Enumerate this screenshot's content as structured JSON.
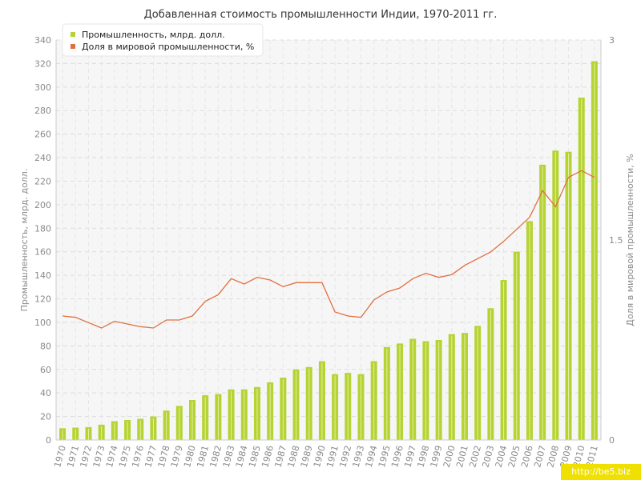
{
  "chart_data": {
    "type": "bar",
    "title": "Добавленная стоимость промышленности Индии, 1970-2011 гг.",
    "ylabel_left": "Промышленность, млрд. долл.",
    "ylabel_right": "Доля в мировой промышленности, %",
    "xlabel": "",
    "ylim_left": [
      0,
      340
    ],
    "ylim_right": [
      0,
      3
    ],
    "yticks_left": [
      "0",
      "20",
      "40",
      "60",
      "80",
      "100",
      "120",
      "140",
      "160",
      "180",
      "200",
      "220",
      "240",
      "260",
      "280",
      "300",
      "320",
      "340"
    ],
    "yticks_right": [
      "0",
      "1.5",
      "3"
    ],
    "grid": true,
    "legend_position": "top-left",
    "categories": [
      "1970",
      "1971",
      "1972",
      "1973",
      "1974",
      "1975",
      "1976",
      "1977",
      "1978",
      "1979",
      "1980",
      "1981",
      "1982",
      "1983",
      "1984",
      "1985",
      "1986",
      "1987",
      "1988",
      "1989",
      "1990",
      "1991",
      "1992",
      "1993",
      "1994",
      "1995",
      "1996",
      "1997",
      "1998",
      "1999",
      "2000",
      "2001",
      "2002",
      "2003",
      "2004",
      "2005",
      "2006",
      "2007",
      "2008",
      "2009",
      "2010",
      "2011"
    ],
    "series": [
      {
        "name": "Промышленность, млрд. долл.",
        "type": "bar",
        "axis": "left",
        "color": "#b5d334",
        "values": [
          10,
          10.5,
          11,
          13,
          16,
          17,
          18,
          20,
          25,
          29,
          34,
          38,
          39,
          43,
          43,
          45,
          49,
          53,
          60,
          62,
          67,
          56,
          57,
          56,
          67,
          79,
          82,
          86,
          84,
          85,
          90,
          91,
          97,
          112,
          136,
          160,
          186,
          234,
          246,
          245,
          291,
          322
        ]
      },
      {
        "name": "Доля в мировой промышленности, %",
        "type": "line",
        "axis": "right",
        "color": "#e07040",
        "values": [
          0.93,
          0.92,
          0.88,
          0.84,
          0.89,
          0.87,
          0.85,
          0.84,
          0.9,
          0.9,
          0.93,
          1.04,
          1.09,
          1.21,
          1.17,
          1.22,
          1.2,
          1.15,
          1.18,
          1.18,
          1.18,
          0.96,
          0.93,
          0.92,
          1.05,
          1.11,
          1.14,
          1.21,
          1.25,
          1.22,
          1.24,
          1.31,
          1.36,
          1.41,
          1.49,
          1.58,
          1.67,
          1.87,
          1.75,
          1.97,
          2.02,
          1.97
        ]
      }
    ]
  },
  "watermark": "http://be5.biz"
}
